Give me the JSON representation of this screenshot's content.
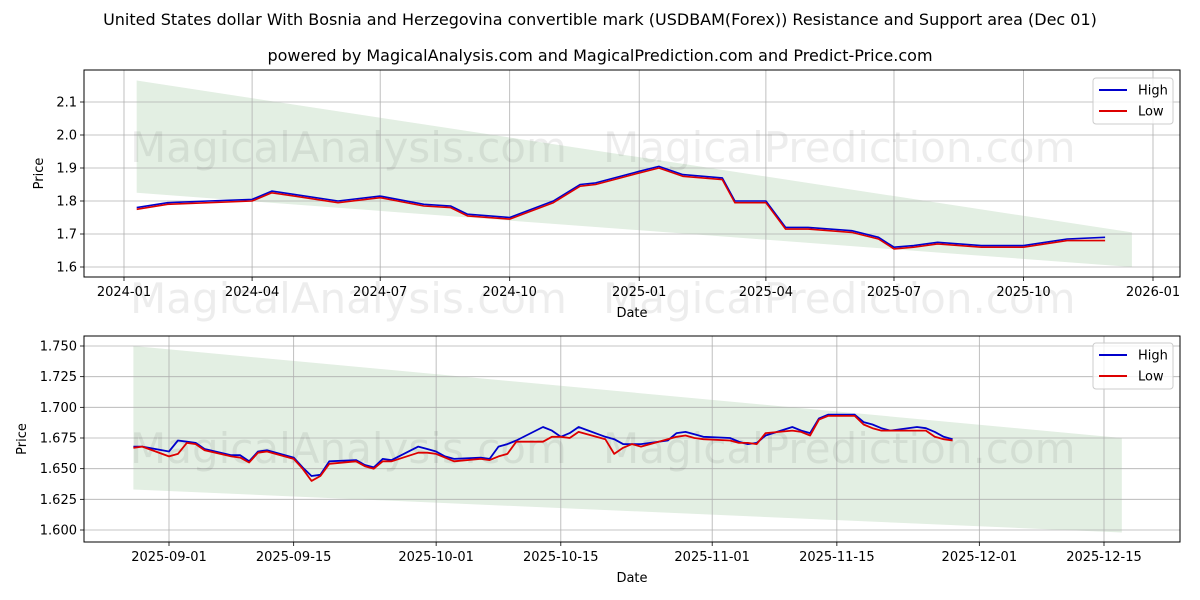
{
  "title": "United States dollar With Bosnia and Herzegovina convertible mark (USDBAM(Forex)) Resistance and Support area (Dec 01)",
  "subtitle": "powered by MagicalAnalysis.com and MagicalPrediction.com and Predict-Price.com",
  "watermarks": [
    "MagicalAnalysis.com",
    "MagicalPrediction.com"
  ],
  "colors": {
    "high": "#0000cc",
    "low": "#dd0000",
    "band": "#e3efe3",
    "grid": "#b0b0b0"
  },
  "chart_data": [
    {
      "type": "line",
      "title": "",
      "xlabel": "Date",
      "ylabel": "Price",
      "ylim": [
        1.57,
        2.2
      ],
      "grid": true,
      "legend_position": "upper right",
      "legend": [
        "High",
        "Low"
      ],
      "x_ticks": [
        "2024-01",
        "2024-04",
        "2024-07",
        "2024-10",
        "2025-01",
        "2025-04",
        "2025-07",
        "2025-10",
        "2026-01"
      ],
      "y_ticks": [
        "1.6",
        "1.7",
        "1.8",
        "1.9",
        "2.0",
        "2.1"
      ],
      "band": {
        "start": "2024-01-10",
        "end": "2025-12-17",
        "upper": [
          2.165,
          1.705
        ],
        "lower": [
          1.825,
          1.6
        ]
      },
      "x": [
        "2024-01-10",
        "2024-02-01",
        "2024-03-01",
        "2024-04-01",
        "2024-04-15",
        "2024-05-01",
        "2024-06-01",
        "2024-07-01",
        "2024-08-01",
        "2024-08-20",
        "2024-09-01",
        "2024-10-01",
        "2024-11-01",
        "2024-11-20",
        "2024-12-01",
        "2025-01-01",
        "2025-01-15",
        "2025-02-01",
        "2025-03-01",
        "2025-03-10",
        "2025-04-01",
        "2025-04-15",
        "2025-05-01",
        "2025-06-01",
        "2025-06-20",
        "2025-07-01",
        "2025-07-15",
        "2025-08-01",
        "2025-09-01",
        "2025-10-01",
        "2025-11-01",
        "2025-11-28"
      ],
      "series": [
        {
          "name": "High",
          "values": [
            1.78,
            1.795,
            1.8,
            1.805,
            1.83,
            1.82,
            1.8,
            1.815,
            1.79,
            1.785,
            1.76,
            1.75,
            1.8,
            1.85,
            1.855,
            1.89,
            1.905,
            1.88,
            1.87,
            1.8,
            1.8,
            1.72,
            1.72,
            1.71,
            1.69,
            1.66,
            1.665,
            1.675,
            1.665,
            1.665,
            1.685,
            1.69
          ]
        },
        {
          "name": "Low",
          "values": [
            1.775,
            1.79,
            1.795,
            1.8,
            1.825,
            1.815,
            1.795,
            1.81,
            1.785,
            1.78,
            1.755,
            1.745,
            1.795,
            1.845,
            1.85,
            1.885,
            1.9,
            1.875,
            1.865,
            1.795,
            1.795,
            1.715,
            1.715,
            1.705,
            1.685,
            1.655,
            1.66,
            1.67,
            1.66,
            1.66,
            1.68,
            1.68
          ]
        }
      ]
    },
    {
      "type": "line",
      "title": "",
      "xlabel": "Date",
      "ylabel": "Price",
      "ylim": [
        1.59,
        1.758
      ],
      "grid": true,
      "legend_position": "upper right",
      "legend": [
        "High",
        "Low"
      ],
      "x_ticks": [
        "2025-09-01",
        "2025-09-15",
        "2025-10-01",
        "2025-10-15",
        "2025-11-01",
        "2025-11-15",
        "2025-12-01",
        "2025-12-15"
      ],
      "y_ticks": [
        "1.600",
        "1.625",
        "1.650",
        "1.675",
        "1.700",
        "1.725",
        "1.750"
      ],
      "band": {
        "start": "2025-08-28",
        "end": "2025-12-17",
        "upper": [
          1.75,
          1.675
        ],
        "lower": [
          1.633,
          1.598
        ]
      },
      "x": [
        "2025-08-28",
        "2025-08-29",
        "2025-09-01",
        "2025-09-02",
        "2025-09-03",
        "2025-09-04",
        "2025-09-05",
        "2025-09-08",
        "2025-09-09",
        "2025-09-10",
        "2025-09-11",
        "2025-09-12",
        "2025-09-15",
        "2025-09-16",
        "2025-09-17",
        "2025-09-18",
        "2025-09-19",
        "2025-09-22",
        "2025-09-23",
        "2025-09-24",
        "2025-09-25",
        "2025-09-26",
        "2025-09-29",
        "2025-09-30",
        "2025-10-01",
        "2025-10-02",
        "2025-10-03",
        "2025-10-06",
        "2025-10-07",
        "2025-10-08",
        "2025-10-09",
        "2025-10-10",
        "2025-10-13",
        "2025-10-14",
        "2025-10-15",
        "2025-10-16",
        "2025-10-17",
        "2025-10-20",
        "2025-10-21",
        "2025-10-22",
        "2025-10-23",
        "2025-10-24",
        "2025-10-27",
        "2025-10-28",
        "2025-10-29",
        "2025-10-30",
        "2025-10-31",
        "2025-11-03",
        "2025-11-04",
        "2025-11-05",
        "2025-11-06",
        "2025-11-07",
        "2025-11-10",
        "2025-11-11",
        "2025-11-12",
        "2025-11-13",
        "2025-11-14",
        "2025-11-17",
        "2025-11-18",
        "2025-11-19",
        "2025-11-20",
        "2025-11-21",
        "2025-11-24",
        "2025-11-25",
        "2025-11-26",
        "2025-11-27",
        "2025-11-28"
      ],
      "series": [
        {
          "name": "High",
          "values": [
            1.668,
            1.668,
            1.664,
            1.673,
            1.672,
            1.671,
            1.666,
            1.661,
            1.661,
            1.656,
            1.664,
            1.665,
            1.659,
            1.651,
            1.644,
            1.645,
            1.656,
            1.657,
            1.653,
            1.651,
            1.658,
            1.657,
            1.668,
            1.666,
            1.664,
            1.66,
            1.658,
            1.659,
            1.658,
            1.668,
            1.67,
            1.673,
            1.684,
            1.681,
            1.676,
            1.679,
            1.684,
            1.676,
            1.674,
            1.67,
            1.67,
            1.67,
            1.673,
            1.679,
            1.68,
            1.678,
            1.676,
            1.675,
            1.672,
            1.67,
            1.671,
            1.677,
            1.684,
            1.681,
            1.679,
            1.691,
            1.694,
            1.694,
            1.688,
            1.686,
            1.683,
            1.681,
            1.684,
            1.683,
            1.68,
            1.676,
            1.674
          ]
        },
        {
          "name": "Low",
          "values": [
            1.667,
            1.668,
            1.66,
            1.662,
            1.671,
            1.67,
            1.665,
            1.66,
            1.659,
            1.655,
            1.663,
            1.664,
            1.658,
            1.65,
            1.64,
            1.644,
            1.654,
            1.656,
            1.652,
            1.65,
            1.656,
            1.656,
            1.663,
            1.663,
            1.662,
            1.659,
            1.656,
            1.658,
            1.657,
            1.66,
            1.662,
            1.672,
            1.672,
            1.676,
            1.676,
            1.675,
            1.68,
            1.674,
            1.662,
            1.667,
            1.67,
            1.668,
            1.674,
            1.676,
            1.677,
            1.675,
            1.674,
            1.673,
            1.671,
            1.671,
            1.67,
            1.679,
            1.681,
            1.68,
            1.677,
            1.69,
            1.693,
            1.693,
            1.686,
            1.683,
            1.681,
            1.681,
            1.681,
            1.681,
            1.676,
            1.674,
            1.673
          ]
        }
      ]
    }
  ]
}
